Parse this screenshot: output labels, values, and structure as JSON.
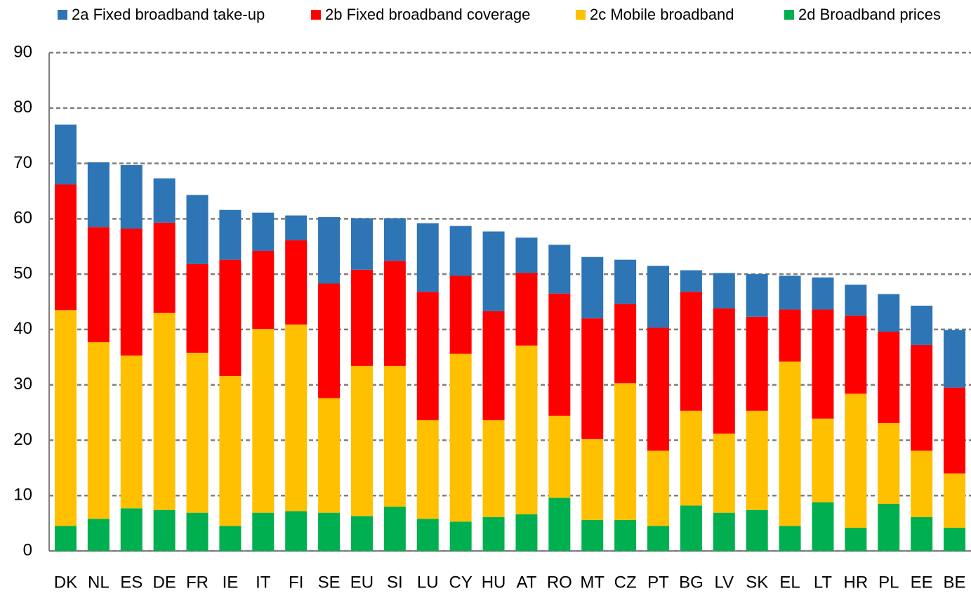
{
  "chart_data": {
    "type": "stacked_bar",
    "categories": [
      "DK",
      "NL",
      "ES",
      "DE",
      "FR",
      "IE",
      "IT",
      "FI",
      "SE",
      "EU",
      "SI",
      "LU",
      "CY",
      "HU",
      "AT",
      "RO",
      "MT",
      "CZ",
      "PT",
      "BG",
      "LV",
      "SK",
      "EL",
      "LT",
      "HR",
      "PL",
      "EE",
      "BE"
    ],
    "series": [
      {
        "name": "2a Fixed broadband take-up",
        "color": "#2e75b6",
        "values": [
          10.8,
          11.7,
          11.5,
          8.0,
          12.5,
          9.0,
          6.9,
          4.5,
          12.0,
          9.3,
          7.7,
          12.4,
          9.0,
          14.4,
          6.4,
          8.8,
          11.1,
          8.0,
          11.2,
          3.9,
          6.4,
          7.7,
          6.1,
          5.8,
          5.6,
          6.8,
          7.1,
          10.4
        ]
      },
      {
        "name": "2b Fixed broadband coverage",
        "color": "#ff0000",
        "values": [
          22.7,
          20.8,
          22.9,
          16.3,
          16.0,
          21.0,
          14.1,
          15.2,
          20.7,
          17.4,
          19.0,
          23.2,
          14.1,
          19.7,
          13.1,
          22.1,
          21.8,
          14.3,
          22.2,
          21.5,
          22.6,
          17.0,
          9.4,
          19.7,
          14.1,
          16.5,
          19.1,
          15.5
        ]
      },
      {
        "name": "2c Mobile broadband",
        "color": "#ffc000",
        "values": [
          39.0,
          31.9,
          27.6,
          35.6,
          28.9,
          27.1,
          33.2,
          33.7,
          20.7,
          27.1,
          25.4,
          17.8,
          30.3,
          17.5,
          30.5,
          14.8,
          14.6,
          24.7,
          13.6,
          17.1,
          14.3,
          17.9,
          29.7,
          15.1,
          24.2,
          14.6,
          12.0,
          9.8
        ]
      },
      {
        "name": "2d Broadband prices",
        "color": "#00b050",
        "values": [
          4.5,
          5.8,
          7.7,
          7.4,
          6.9,
          4.5,
          6.9,
          7.2,
          6.9,
          6.3,
          8.0,
          5.8,
          5.3,
          6.1,
          6.6,
          9.6,
          5.6,
          5.6,
          4.5,
          8.2,
          6.9,
          7.4,
          4.5,
          8.8,
          4.2,
          8.5,
          6.1,
          4.2
        ]
      }
    ],
    "ylim": [
      0,
      90
    ],
    "yticks": [
      0,
      10,
      20,
      30,
      40,
      50,
      60,
      70,
      80,
      90
    ],
    "grid": true
  }
}
